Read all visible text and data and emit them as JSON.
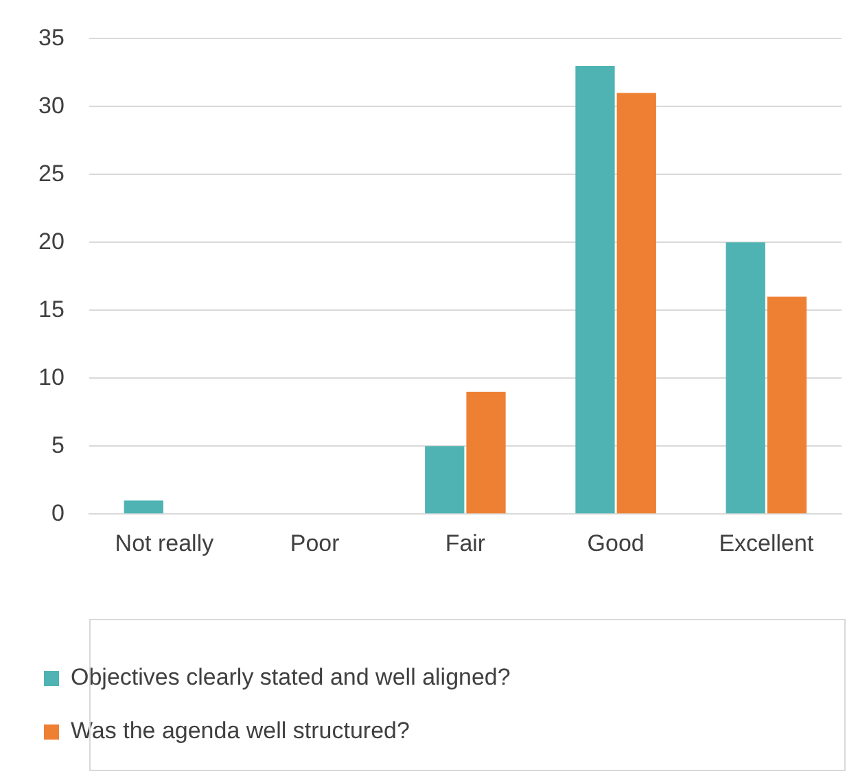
{
  "chart_data": {
    "type": "bar",
    "categories": [
      "Not really",
      "Poor",
      "Fair",
      "Good",
      "Excellent"
    ],
    "series": [
      {
        "name": "Objectives clearly stated and well aligned?",
        "color": "#4fb3b3",
        "values": [
          1,
          0,
          5,
          33,
          20
        ]
      },
      {
        "name": "Was the agenda well structured?",
        "color": "#ee8033",
        "values": [
          0,
          0,
          9,
          31,
          16
        ]
      }
    ],
    "ylim": [
      0,
      35
    ],
    "yticks": [
      0,
      5,
      10,
      15,
      20,
      25,
      30,
      35
    ],
    "grid": "y",
    "legend": "bottom"
  }
}
